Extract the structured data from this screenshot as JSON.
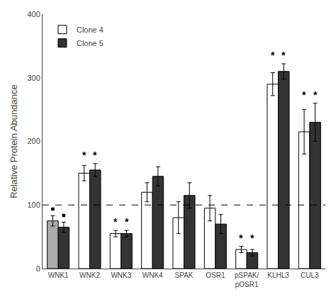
{
  "chart_data": {
    "type": "bar",
    "categories": [
      "WNK1",
      "WNK2",
      "WNK3",
      "WNK4",
      "SPAK",
      "OSR1",
      "pSPAK/\npOSR1",
      "KLHL3",
      "CUL3"
    ],
    "series": [
      {
        "name": "Clone 4",
        "color": "#ffffff",
        "colors": [
          "#aaaaaa",
          "#ffffff",
          "#ffffff",
          "#ffffff",
          "#ffffff",
          "#ffffff",
          "#ffffff",
          "#ffffff",
          "#ffffff"
        ],
        "values": [
          75,
          150,
          55,
          120,
          80,
          95,
          30,
          290,
          215
        ],
        "errors": [
          8,
          12,
          5,
          15,
          25,
          20,
          5,
          18,
          35
        ]
      },
      {
        "name": "Clone 5",
        "color": "#333333",
        "values": [
          65,
          155,
          55,
          145,
          115,
          70,
          25,
          310,
          230
        ],
        "errors": [
          8,
          10,
          5,
          15,
          20,
          15,
          5,
          12,
          30
        ]
      }
    ],
    "ylabel": "Relative Protein Abundance",
    "ylim": [
      0,
      400
    ],
    "yticks": [
      0,
      100,
      200,
      300,
      400
    ],
    "grid": false,
    "legend": "upper left",
    "reference_line": 100,
    "significance": [
      false,
      true,
      true,
      false,
      false,
      false,
      true,
      true,
      true
    ],
    "significance_label": "*",
    "dot_categories": [
      "WNK1"
    ]
  }
}
